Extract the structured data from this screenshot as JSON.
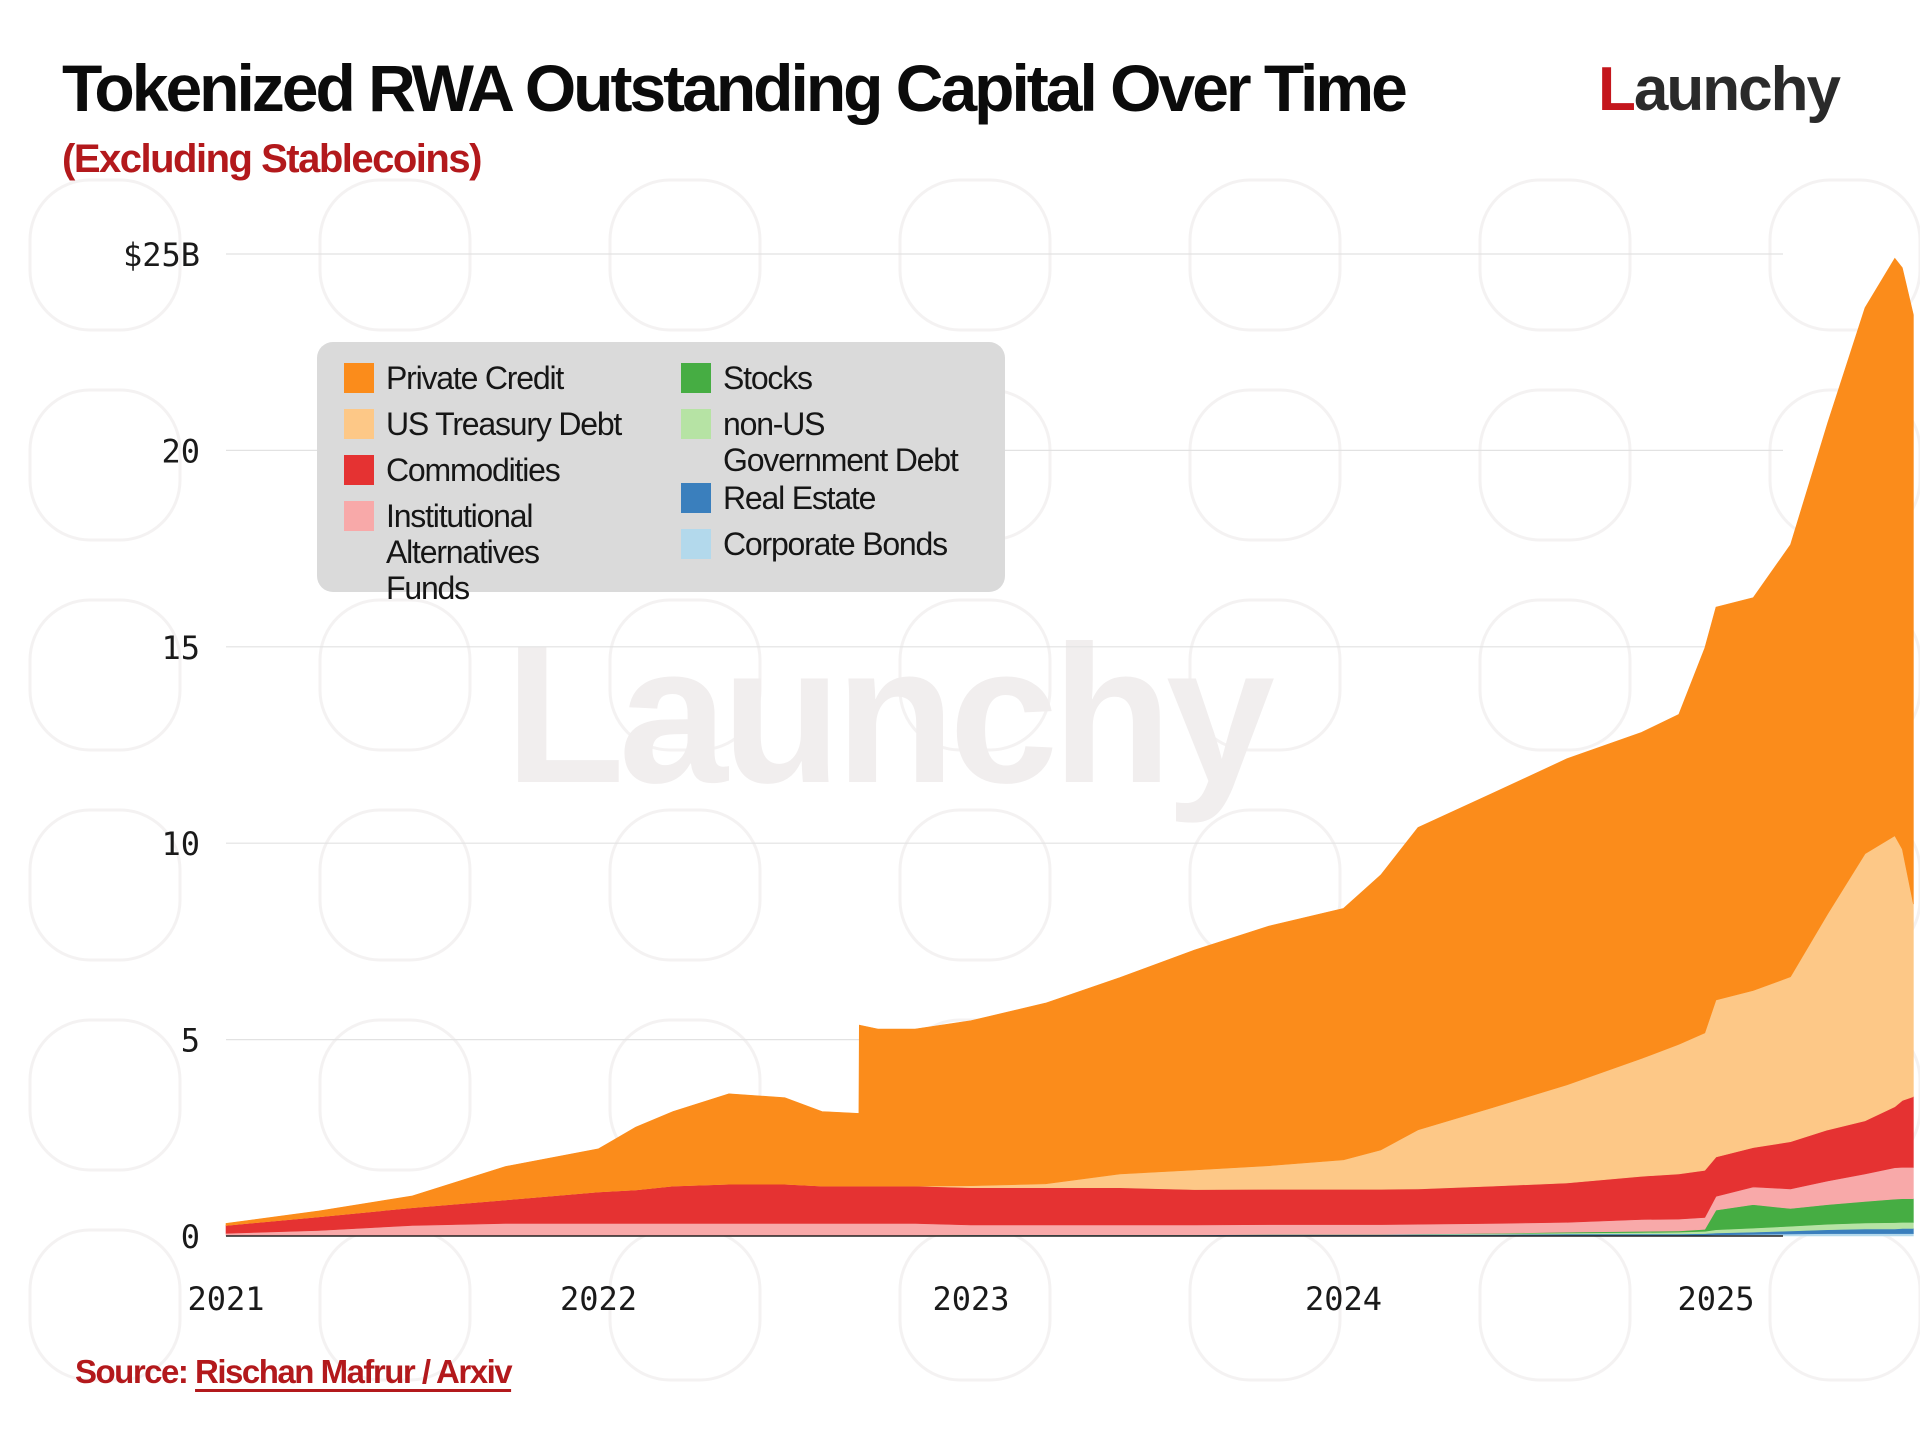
{
  "header": {
    "title": "Tokenized RWA Outstanding Capital Over Time",
    "subtitle": "(Excluding Stablecoins)"
  },
  "brand": {
    "logo_initial": "L",
    "logo_rest": "aunchy",
    "watermark": "Launchy",
    "accent_color": "#c4161c"
  },
  "footer": {
    "source_label": "Source:",
    "source_text": "Rischan Mafrur / Arxiv"
  },
  "chart_data": {
    "type": "area",
    "stacked": true,
    "title": "Tokenized RWA Outstanding Capital Over Time",
    "subtitle": "(Excluding Stablecoins)",
    "y_unit": "USD billions",
    "xlim": [
      2021.0,
      2025.53
    ],
    "ylim": [
      0,
      25
    ],
    "y_ticks": [
      0,
      5,
      10,
      15,
      20,
      25
    ],
    "y_tick_labels": [
      "0",
      "5",
      "10",
      "15",
      "20",
      "$25B"
    ],
    "x_ticks": [
      2021,
      2022,
      2023,
      2024,
      2025
    ],
    "x_tick_labels": [
      "2021",
      "2022",
      "2023",
      "2024",
      "2025"
    ],
    "grid": "horizontal",
    "legend_position": "upper-left",
    "x": [
      2021.0,
      2021.25,
      2021.5,
      2021.75,
      2022.0,
      2022.1,
      2022.2,
      2022.35,
      2022.5,
      2022.6,
      2022.699,
      2022.7,
      2022.75,
      2022.85,
      2023.0,
      2023.2,
      2023.4,
      2023.6,
      2023.8,
      2024.0,
      2024.1,
      2024.2,
      2024.4,
      2024.6,
      2024.8,
      2024.9,
      2024.97,
      2025.0,
      2025.1,
      2025.2,
      2025.3,
      2025.4,
      2025.48,
      2025.5,
      2025.53
    ],
    "series": [
      {
        "name": "Corporate Bonds",
        "color": "#b3d9ec",
        "values": [
          0.02,
          0.02,
          0.02,
          0.02,
          0.02,
          0.02,
          0.02,
          0.02,
          0.02,
          0.02,
          0.02,
          0.02,
          0.02,
          0.02,
          0.02,
          0.02,
          0.02,
          0.02,
          0.02,
          0.02,
          0.02,
          0.02,
          0.02,
          0.02,
          0.02,
          0.02,
          0.02,
          0.03,
          0.04,
          0.05,
          0.06,
          0.06,
          0.06,
          0.06,
          0.06
        ]
      },
      {
        "name": "Real Estate",
        "color": "#3a7fbd",
        "values": [
          0,
          0,
          0,
          0,
          0,
          0,
          0,
          0,
          0,
          0,
          0,
          0,
          0,
          0,
          0.01,
          0.01,
          0.01,
          0.01,
          0.02,
          0.02,
          0.02,
          0.02,
          0.02,
          0.03,
          0.03,
          0.03,
          0.04,
          0.05,
          0.06,
          0.08,
          0.1,
          0.12,
          0.12,
          0.13,
          0.13
        ]
      },
      {
        "name": "non-US Government Debt",
        "color": "#b6e3a4",
        "values": [
          0,
          0,
          0,
          0,
          0,
          0,
          0,
          0,
          0,
          0,
          0,
          0,
          0,
          0,
          0,
          0,
          0,
          0,
          0,
          0,
          0,
          0.01,
          0.02,
          0.03,
          0.04,
          0.05,
          0.06,
          0.08,
          0.1,
          0.12,
          0.14,
          0.15,
          0.16,
          0.16,
          0.16
        ]
      },
      {
        "name": "Stocks",
        "color": "#46ad43",
        "values": [
          0,
          0,
          0,
          0,
          0,
          0,
          0,
          0,
          0,
          0,
          0,
          0,
          0,
          0,
          0,
          0,
          0,
          0,
          0,
          0,
          0,
          0,
          0.01,
          0.02,
          0.03,
          0.03,
          0.05,
          0.5,
          0.6,
          0.45,
          0.5,
          0.55,
          0.6,
          0.6,
          0.6
        ]
      },
      {
        "name": "Institutional Alternatives Funds",
        "color": "#f8a9a9",
        "values": [
          0.05,
          0.12,
          0.25,
          0.3,
          0.3,
          0.3,
          0.3,
          0.3,
          0.3,
          0.3,
          0.3,
          0.3,
          0.3,
          0.3,
          0.25,
          0.25,
          0.25,
          0.25,
          0.25,
          0.25,
          0.25,
          0.25,
          0.25,
          0.25,
          0.3,
          0.3,
          0.3,
          0.35,
          0.45,
          0.5,
          0.6,
          0.7,
          0.8,
          0.8,
          0.8
        ]
      },
      {
        "name": "Commodities",
        "color": "#e53232",
        "values": [
          0.2,
          0.35,
          0.45,
          0.6,
          0.8,
          0.85,
          0.95,
          1.0,
          1.0,
          0.95,
          0.95,
          0.95,
          0.95,
          0.95,
          0.95,
          0.95,
          0.95,
          0.9,
          0.9,
          0.9,
          0.9,
          0.9,
          0.95,
          1.0,
          1.1,
          1.15,
          1.2,
          1.0,
          1.0,
          1.2,
          1.3,
          1.35,
          1.55,
          1.7,
          1.8
        ]
      },
      {
        "name": "US Treasury Debt",
        "color": "#fdc887",
        "values": [
          0,
          0,
          0,
          0,
          0,
          0,
          0,
          0,
          0,
          0,
          0,
          0,
          0,
          0,
          0.05,
          0.1,
          0.35,
          0.5,
          0.6,
          0.75,
          1.0,
          1.5,
          2.0,
          2.5,
          3.0,
          3.3,
          3.5,
          4.0,
          4.0,
          4.2,
          5.5,
          6.8,
          6.9,
          6.4,
          4.9
        ]
      },
      {
        "name": "Private Credit",
        "color": "#fb8c1b",
        "values": [
          0.05,
          0.15,
          0.3,
          0.85,
          1.1,
          1.6,
          1.9,
          2.3,
          2.2,
          1.9,
          1.85,
          4.1,
          4.0,
          4.0,
          4.2,
          4.6,
          5.0,
          5.6,
          6.1,
          6.4,
          7.0,
          7.7,
          8.0,
          8.3,
          8.3,
          8.4,
          9.8,
          10.0,
          10.0,
          11.0,
          12.5,
          13.9,
          14.7,
          14.8,
          15.0
        ]
      }
    ]
  },
  "legend": {
    "items": [
      {
        "label": "Private Credit",
        "color": "#fb8c1b"
      },
      {
        "label": "US Treasury Debt",
        "color": "#fdc887"
      },
      {
        "label": "Commodities",
        "color": "#e53232"
      },
      {
        "label": "Institutional Alternatives Funds",
        "color": "#f8a9a9"
      },
      {
        "label": "Stocks",
        "color": "#46ad43"
      },
      {
        "label": "non-US Government Debt",
        "color": "#b6e3a4"
      },
      {
        "label": "Real Estate",
        "color": "#3a7fbd"
      },
      {
        "label": "Corporate Bonds",
        "color": "#b3d9ec"
      }
    ]
  }
}
